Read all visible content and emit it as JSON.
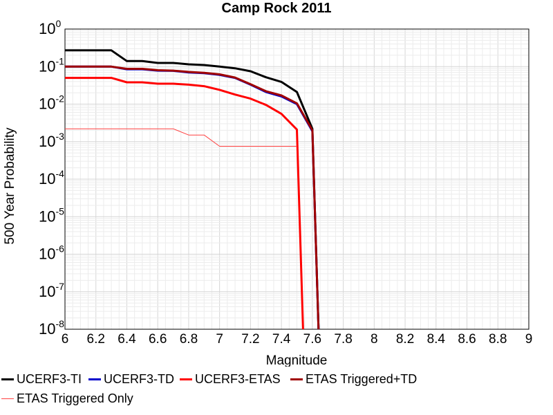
{
  "chart_data": {
    "type": "line",
    "title": "Camp Rock 2011",
    "xlabel": "Magnitude",
    "ylabel": "500 Year Probability",
    "xlim": [
      6,
      9
    ],
    "ylim": [
      1e-08,
      1
    ],
    "y_scale": "log",
    "grid": true,
    "legend_position": "bottom",
    "x_ticks": [
      "6",
      "6.2",
      "6.4",
      "6.6",
      "6.8",
      "7",
      "7.2",
      "7.4",
      "7.6",
      "7.8",
      "8",
      "8.2",
      "8.4",
      "8.6",
      "8.8",
      "9"
    ],
    "y_tick_mantissa": "10",
    "y_tick_exponents": [
      "0",
      "-1",
      "-2",
      "-3",
      "-4",
      "-5",
      "-6",
      "-7",
      "-8"
    ],
    "series": [
      {
        "name": "UCERF3-TI",
        "color": "#000000",
        "x": [
          6.0,
          6.3,
          6.4,
          6.5,
          6.6,
          6.7,
          6.8,
          6.9,
          7.0,
          7.1,
          7.2,
          7.3,
          7.4,
          7.5,
          7.6,
          7.64
        ],
        "y": [
          0.27,
          0.27,
          0.14,
          0.14,
          0.125,
          0.125,
          0.115,
          0.11,
          0.1,
          0.09,
          0.075,
          0.052,
          0.039,
          0.021,
          0.0022,
          1e-08
        ]
      },
      {
        "name": "UCERF3-TD",
        "color": "#0000cc",
        "x": [
          6.0,
          6.3,
          6.4,
          6.5,
          6.6,
          6.7,
          6.8,
          6.9,
          7.0,
          7.1,
          7.2,
          7.3,
          7.4,
          7.5,
          7.6,
          7.64
        ],
        "y": [
          0.1,
          0.1,
          0.085,
          0.085,
          0.078,
          0.077,
          0.07,
          0.067,
          0.06,
          0.05,
          0.033,
          0.021,
          0.016,
          0.01,
          0.0019,
          1e-08
        ]
      },
      {
        "name": "UCERF3-ETAS",
        "color": "#ff0000",
        "x": [
          6.0,
          6.3,
          6.4,
          6.5,
          6.6,
          6.7,
          6.8,
          6.9,
          7.0,
          7.1,
          7.2,
          7.3,
          7.4,
          7.5,
          7.54
        ],
        "y": [
          0.05,
          0.05,
          0.038,
          0.038,
          0.035,
          0.035,
          0.033,
          0.03,
          0.024,
          0.018,
          0.014,
          0.0095,
          0.0055,
          0.0021,
          1e-08
        ]
      },
      {
        "name": "ETAS Triggered+TD",
        "color": "#a00000",
        "x": [
          6.0,
          6.3,
          6.4,
          6.5,
          6.6,
          6.7,
          6.8,
          6.9,
          7.0,
          7.1,
          7.2,
          7.3,
          7.4,
          7.5,
          7.6,
          7.64
        ],
        "y": [
          0.1,
          0.1,
          0.087,
          0.087,
          0.08,
          0.078,
          0.072,
          0.068,
          0.062,
          0.051,
          0.034,
          0.022,
          0.017,
          0.0105,
          0.002,
          1e-08
        ]
      },
      {
        "name": "ETAS Triggered Only",
        "color": "#ff4040",
        "thin": true,
        "x": [
          6.0,
          6.7,
          6.8,
          6.9,
          7.0,
          7.5
        ],
        "y": [
          0.0022,
          0.0022,
          0.0015,
          0.0015,
          0.00075,
          0.00075
        ]
      }
    ]
  }
}
